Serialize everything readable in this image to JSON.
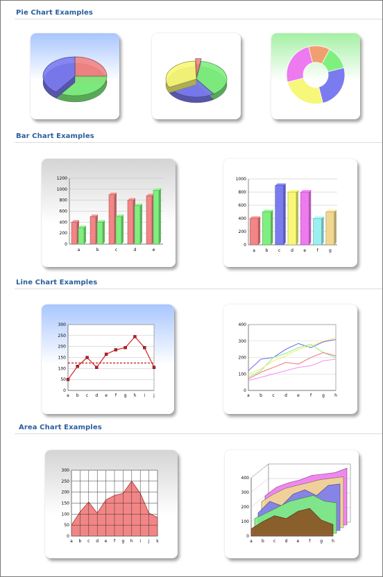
{
  "sections": {
    "pie": "Pie Chart Examples",
    "bar": "Bar Chart Examples",
    "line": "Line Chart Examples",
    "area": "Area Chart Examples"
  },
  "colors": {
    "title": "#2a5e9c",
    "red": "#f28585",
    "green": "#7ff07f",
    "blue": "#7b7bf0",
    "yellow": "#f7f77a",
    "magenta": "#ee7af0",
    "cyan": "#9af0f0",
    "tan": "#f0d890",
    "orange": "#f0a070"
  },
  "chart_data": [
    {
      "type": "pie",
      "variant": "3d-tilted",
      "slices": [
        {
          "color": "red",
          "value": 25
        },
        {
          "color": "green",
          "value": 35
        },
        {
          "color": "blue",
          "value": 40
        }
      ]
    },
    {
      "type": "pie",
      "variant": "3d-tilted-exploded",
      "slices": [
        {
          "color": "red",
          "value": 3
        },
        {
          "color": "green",
          "value": 38
        },
        {
          "color": "blue",
          "value": 27
        },
        {
          "color": "yellow",
          "value": 32
        }
      ]
    },
    {
      "type": "pie",
      "variant": "doughnut",
      "slices": [
        {
          "color": "orange",
          "value": 12
        },
        {
          "color": "green",
          "value": 13
        },
        {
          "color": "blue",
          "value": 25
        },
        {
          "color": "yellow",
          "value": 25
        },
        {
          "color": "magenta",
          "value": 25
        }
      ]
    },
    {
      "type": "bar",
      "categories": [
        "a",
        "b",
        "c",
        "d",
        "e"
      ],
      "ylim": [
        0,
        1200
      ],
      "yticks": [
        0,
        200,
        400,
        600,
        800,
        1000,
        1200
      ],
      "series": [
        {
          "color": "red",
          "values": [
            400,
            500,
            900,
            800,
            880
          ]
        },
        {
          "color": "green",
          "values": [
            300,
            400,
            500,
            700,
            980
          ]
        }
      ]
    },
    {
      "type": "bar",
      "categories": [
        "a",
        "b",
        "c",
        "d",
        "e",
        "f",
        "g"
      ],
      "ylim": [
        0,
        1000
      ],
      "yticks": [
        0,
        200,
        400,
        600,
        800,
        1000
      ],
      "series": [
        {
          "colors": [
            "red",
            "green",
            "blue",
            "yellow",
            "magenta",
            "cyan",
            "tan"
          ],
          "values": [
            400,
            500,
            900,
            800,
            800,
            400,
            500
          ]
        }
      ]
    },
    {
      "type": "line",
      "categories": [
        "a",
        "b",
        "c",
        "d",
        "e",
        "f",
        "g",
        "h",
        "i",
        "j"
      ],
      "ylim": [
        0,
        300
      ],
      "yticks": [
        0,
        50,
        100,
        150,
        200,
        250,
        300
      ],
      "series": [
        {
          "color": "#d02020",
          "values": [
            50,
            110,
            150,
            105,
            165,
            185,
            195,
            245,
            195,
            105
          ]
        }
      ],
      "reference_line": 125
    },
    {
      "type": "line",
      "categories": [
        "a",
        "b",
        "c",
        "d",
        "e",
        "f",
        "g",
        "h"
      ],
      "ylim": [
        0,
        400
      ],
      "yticks": [
        0,
        100,
        200,
        300,
        400
      ],
      "series": [
        {
          "color": "#7070f0",
          "values": [
            120,
            190,
            200,
            250,
            285,
            260,
            295,
            310
          ]
        },
        {
          "color": "#90f090",
          "values": [
            80,
            120,
            200,
            225,
            260,
            280,
            230,
            200
          ]
        },
        {
          "color": "#f0f070",
          "values": [
            100,
            130,
            180,
            210,
            250,
            270,
            300,
            320
          ]
        },
        {
          "color": "#f08080",
          "values": [
            70,
            110,
            140,
            170,
            160,
            200,
            230,
            210
          ]
        },
        {
          "color": "#f090f0",
          "values": [
            60,
            80,
            100,
            120,
            140,
            150,
            180,
            190
          ]
        }
      ]
    },
    {
      "type": "area",
      "categories": [
        "a",
        "b",
        "c",
        "d",
        "e",
        "f",
        "g",
        "h",
        "i",
        "j",
        "k"
      ],
      "ylim": [
        0,
        300
      ],
      "yticks": [
        0,
        50,
        100,
        150,
        200,
        250,
        300
      ],
      "series": [
        {
          "color": "red",
          "values": [
            50,
            110,
            155,
            105,
            165,
            185,
            195,
            250,
            195,
            105,
            85
          ]
        }
      ]
    },
    {
      "type": "area",
      "variant": "3d-stacked",
      "categories": [
        "a",
        "b",
        "c",
        "d",
        "e",
        "f",
        "g",
        "h"
      ],
      "ylim": [
        0,
        400
      ],
      "yticks": [
        0,
        100,
        200,
        300,
        400
      ],
      "series": [
        {
          "color": "magenta",
          "values": [
            200,
            260,
            290,
            310,
            340,
            350,
            360,
            390
          ]
        },
        {
          "color": "tan",
          "values": [
            180,
            230,
            270,
            290,
            310,
            330,
            340,
            350
          ]
        },
        {
          "color": "blue",
          "values": [
            120,
            200,
            170,
            250,
            280,
            240,
            310,
            320
          ]
        },
        {
          "color": "green",
          "values": [
            100,
            140,
            180,
            220,
            240,
            260,
            220,
            210
          ]
        },
        {
          "color": "#8a5020",
          "values": [
            50,
            100,
            140,
            120,
            170,
            190,
            110,
            80
          ]
        }
      ]
    }
  ]
}
